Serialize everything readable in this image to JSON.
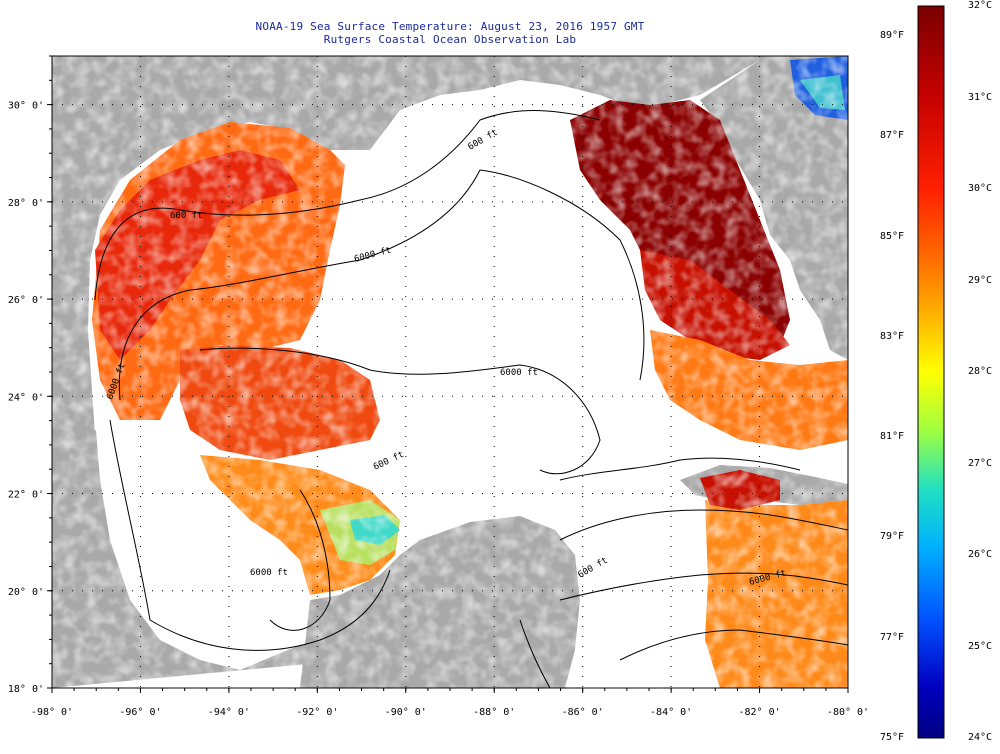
{
  "header": {
    "title": "NOAA-19 Sea Surface Temperature:  August 23, 2016 1957 GMT",
    "subtitle": "Rutgers Coastal Ocean Observation Lab"
  },
  "map": {
    "lon_range": [
      -98,
      -80
    ],
    "lat_range": [
      18,
      31
    ],
    "lon_ticks": [
      "-98° 0'",
      "-96° 0'",
      "-94° 0'",
      "-92° 0'",
      "-90° 0'",
      "-88° 0'",
      "-86° 0'",
      "-84° 0'",
      "-82° 0'",
      "-80° 0'"
    ],
    "lat_ticks": [
      "18° 0'",
      "20° 0'",
      "22° 0'",
      "24° 0'",
      "26° 0'",
      "28° 0'",
      "30° 0'"
    ],
    "contour_labels": [
      "600 ft",
      "6000 ft",
      "600 ft",
      "6000 ft",
      "600 ft",
      "6000 ft",
      "6000 ft",
      "600 ft",
      "6000 ft"
    ],
    "colors": {
      "land": "#a9a9a9",
      "cloud": "#ffffff",
      "hot": "#8b0000",
      "warm": "#e8280a",
      "mild": "#ff9a1a"
    }
  },
  "colorbar": {
    "range_c": [
      24,
      32
    ],
    "range_f": [
      75,
      89.6
    ],
    "celsius_labels": [
      "32°C",
      "31°C",
      "30°C",
      "29°C",
      "28°C",
      "27°C",
      "26°C",
      "25°C",
      "24°C"
    ],
    "fahrenheit_labels": [
      "89°F",
      "87°F",
      "85°F",
      "83°F",
      "81°F",
      "79°F",
      "77°F",
      "75°F"
    ],
    "stops": [
      "#7a0000",
      "#c40000",
      "#ff2000",
      "#ff7000",
      "#ffb000",
      "#ffff00",
      "#a0ff40",
      "#20e0c0",
      "#00b0ff",
      "#0050ff",
      "#0000c0",
      "#000080"
    ]
  }
}
